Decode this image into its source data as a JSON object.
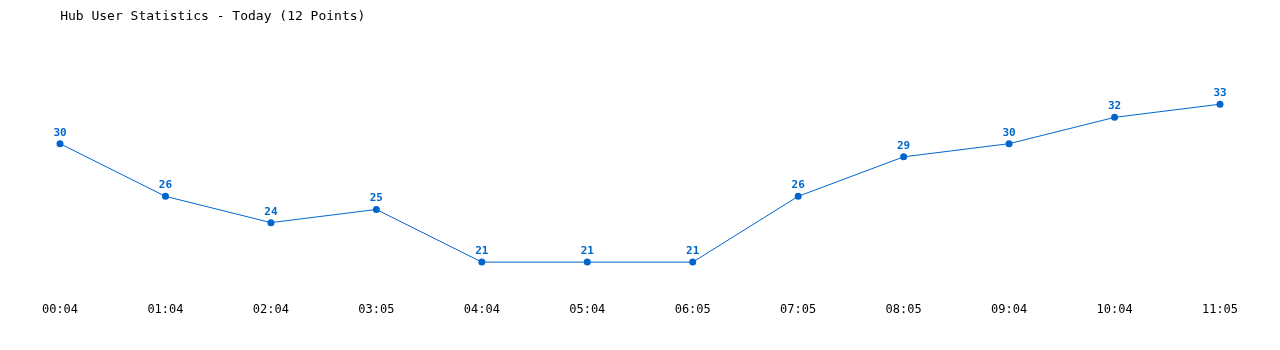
{
  "chart_data": {
    "type": "line",
    "title": "Hub User Statistics - Today (12 Points)",
    "categories": [
      "00:04",
      "01:04",
      "02:04",
      "03:05",
      "04:04",
      "05:04",
      "06:05",
      "07:05",
      "08:05",
      "09:04",
      "10:04",
      "11:05"
    ],
    "series": [
      {
        "color": "#0066cc",
        "values": [
          30,
          26,
          24,
          25,
          21,
          21,
          21,
          26,
          29,
          30,
          32,
          33
        ]
      }
    ],
    "data_labels": true,
    "marker": "circle",
    "line_style": "solid"
  }
}
